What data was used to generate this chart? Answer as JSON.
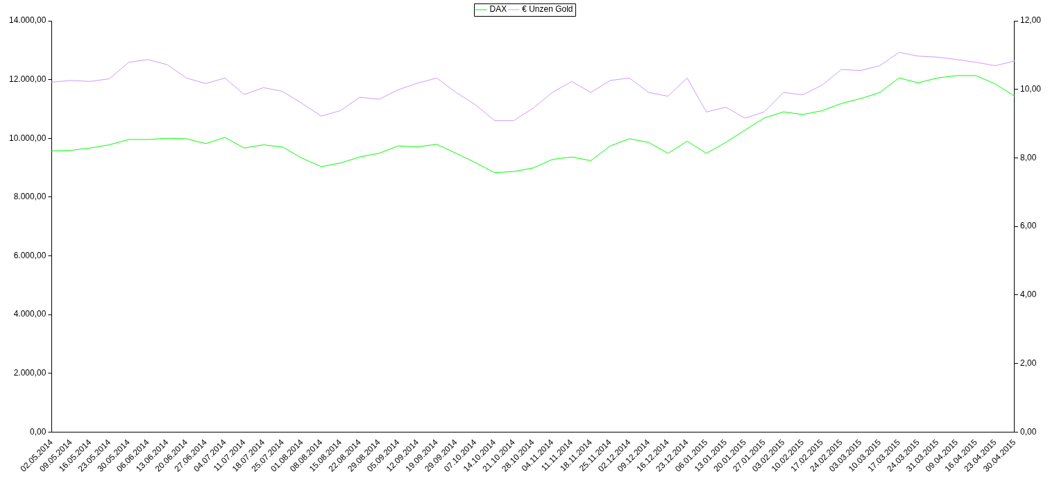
{
  "chart_data": {
    "type": "line",
    "categories": [
      "02.05.2014",
      "09.05.2014",
      "16.05.2014",
      "23.05.2014",
      "30.05.2014",
      "06.06.2014",
      "13.06.2014",
      "20.06.2014",
      "27.06.2014",
      "04.07.2014",
      "11.07.2014",
      "18.07.2014",
      "25.07.2014",
      "01.08.2014",
      "08.08.2014",
      "15.08.2014",
      "22.08.2014",
      "29.08.2014",
      "05.09.2014",
      "12.09.2014",
      "19.09.2014",
      "29.09.2014",
      "07.10.2014",
      "14.10.2014",
      "21.10.2014",
      "28.10.2014",
      "04.11.2014",
      "11.11.2014",
      "18.11.2014",
      "25.11.2014",
      "02.12.2014",
      "09.12.2014",
      "16.12.2014",
      "23.12.2014",
      "06.01.2015",
      "13.01.2015",
      "20.01.2015",
      "27.01.2015",
      "03.02.2015",
      "10.02.2015",
      "17.02.2015",
      "24.02.2015",
      "03.03.2015",
      "10.03.2015",
      "17.03.2015",
      "24.03.2015",
      "31.03.2015",
      "09.04.2015",
      "16.04.2015",
      "23.04.2015",
      "30.04.2015"
    ],
    "series": [
      {
        "name": "DAX",
        "color": "#00ff00",
        "values": [
          9570,
          9590,
          9670,
          9780,
          9960,
          9960,
          10000,
          9985,
          9820,
          10030,
          9670,
          9780,
          9700,
          9325,
          9035,
          9160,
          9365,
          9490,
          9740,
          9710,
          9795,
          9490,
          9175,
          8830,
          8870,
          8990,
          9280,
          9365,
          9240,
          9740,
          9985,
          9860,
          9490,
          9900,
          9490,
          9860,
          10280,
          10690,
          10900,
          10810,
          10940,
          11185,
          11350,
          11560,
          12055,
          11890,
          12055,
          12135,
          12135,
          11850,
          11435
        ]
      },
      {
        "name": "€ Unzen Gold",
        "color": "#cc99ff",
        "axis": "y2",
        "values": [
          10.21,
          10.26,
          10.23,
          10.31,
          10.79,
          10.87,
          10.72,
          10.33,
          10.17,
          10.33,
          9.85,
          10.05,
          9.94,
          9.59,
          9.22,
          9.38,
          9.77,
          9.71,
          9.99,
          10.18,
          10.33,
          9.91,
          9.55,
          9.09,
          9.09,
          9.45,
          9.91,
          10.23,
          9.91,
          10.26,
          10.33,
          9.91,
          9.8,
          10.33,
          9.34,
          9.48,
          9.16,
          9.34,
          9.91,
          9.84,
          10.12,
          10.58,
          10.55,
          10.69,
          11.08,
          10.97,
          10.94,
          10.87,
          10.79,
          10.69,
          10.83
        ]
      }
    ],
    "ylim": [
      0,
      14000
    ],
    "yticks": [
      {
        "value": 0,
        "label": "0,00"
      },
      {
        "value": 2000,
        "label": "2.000,00"
      },
      {
        "value": 4000,
        "label": "4.000,00"
      },
      {
        "value": 6000,
        "label": "6.000,00"
      },
      {
        "value": 8000,
        "label": "8.000,00"
      },
      {
        "value": 10000,
        "label": "10.000,00"
      },
      {
        "value": 12000,
        "label": "12.000,00"
      },
      {
        "value": 14000,
        "label": "14.000,00"
      }
    ],
    "y2lim": [
      0,
      12
    ],
    "y2ticks": [
      {
        "value": 0,
        "label": "0,00"
      },
      {
        "value": 2,
        "label": "2,00"
      },
      {
        "value": 4,
        "label": "4,00"
      },
      {
        "value": 6,
        "label": "6,00"
      },
      {
        "value": 8,
        "label": "8,00"
      },
      {
        "value": 10,
        "label": "10,00"
      },
      {
        "value": 12,
        "label": "12,00"
      }
    ],
    "legend": "top",
    "grid": false,
    "marker": "none",
    "line_style": "solid"
  }
}
